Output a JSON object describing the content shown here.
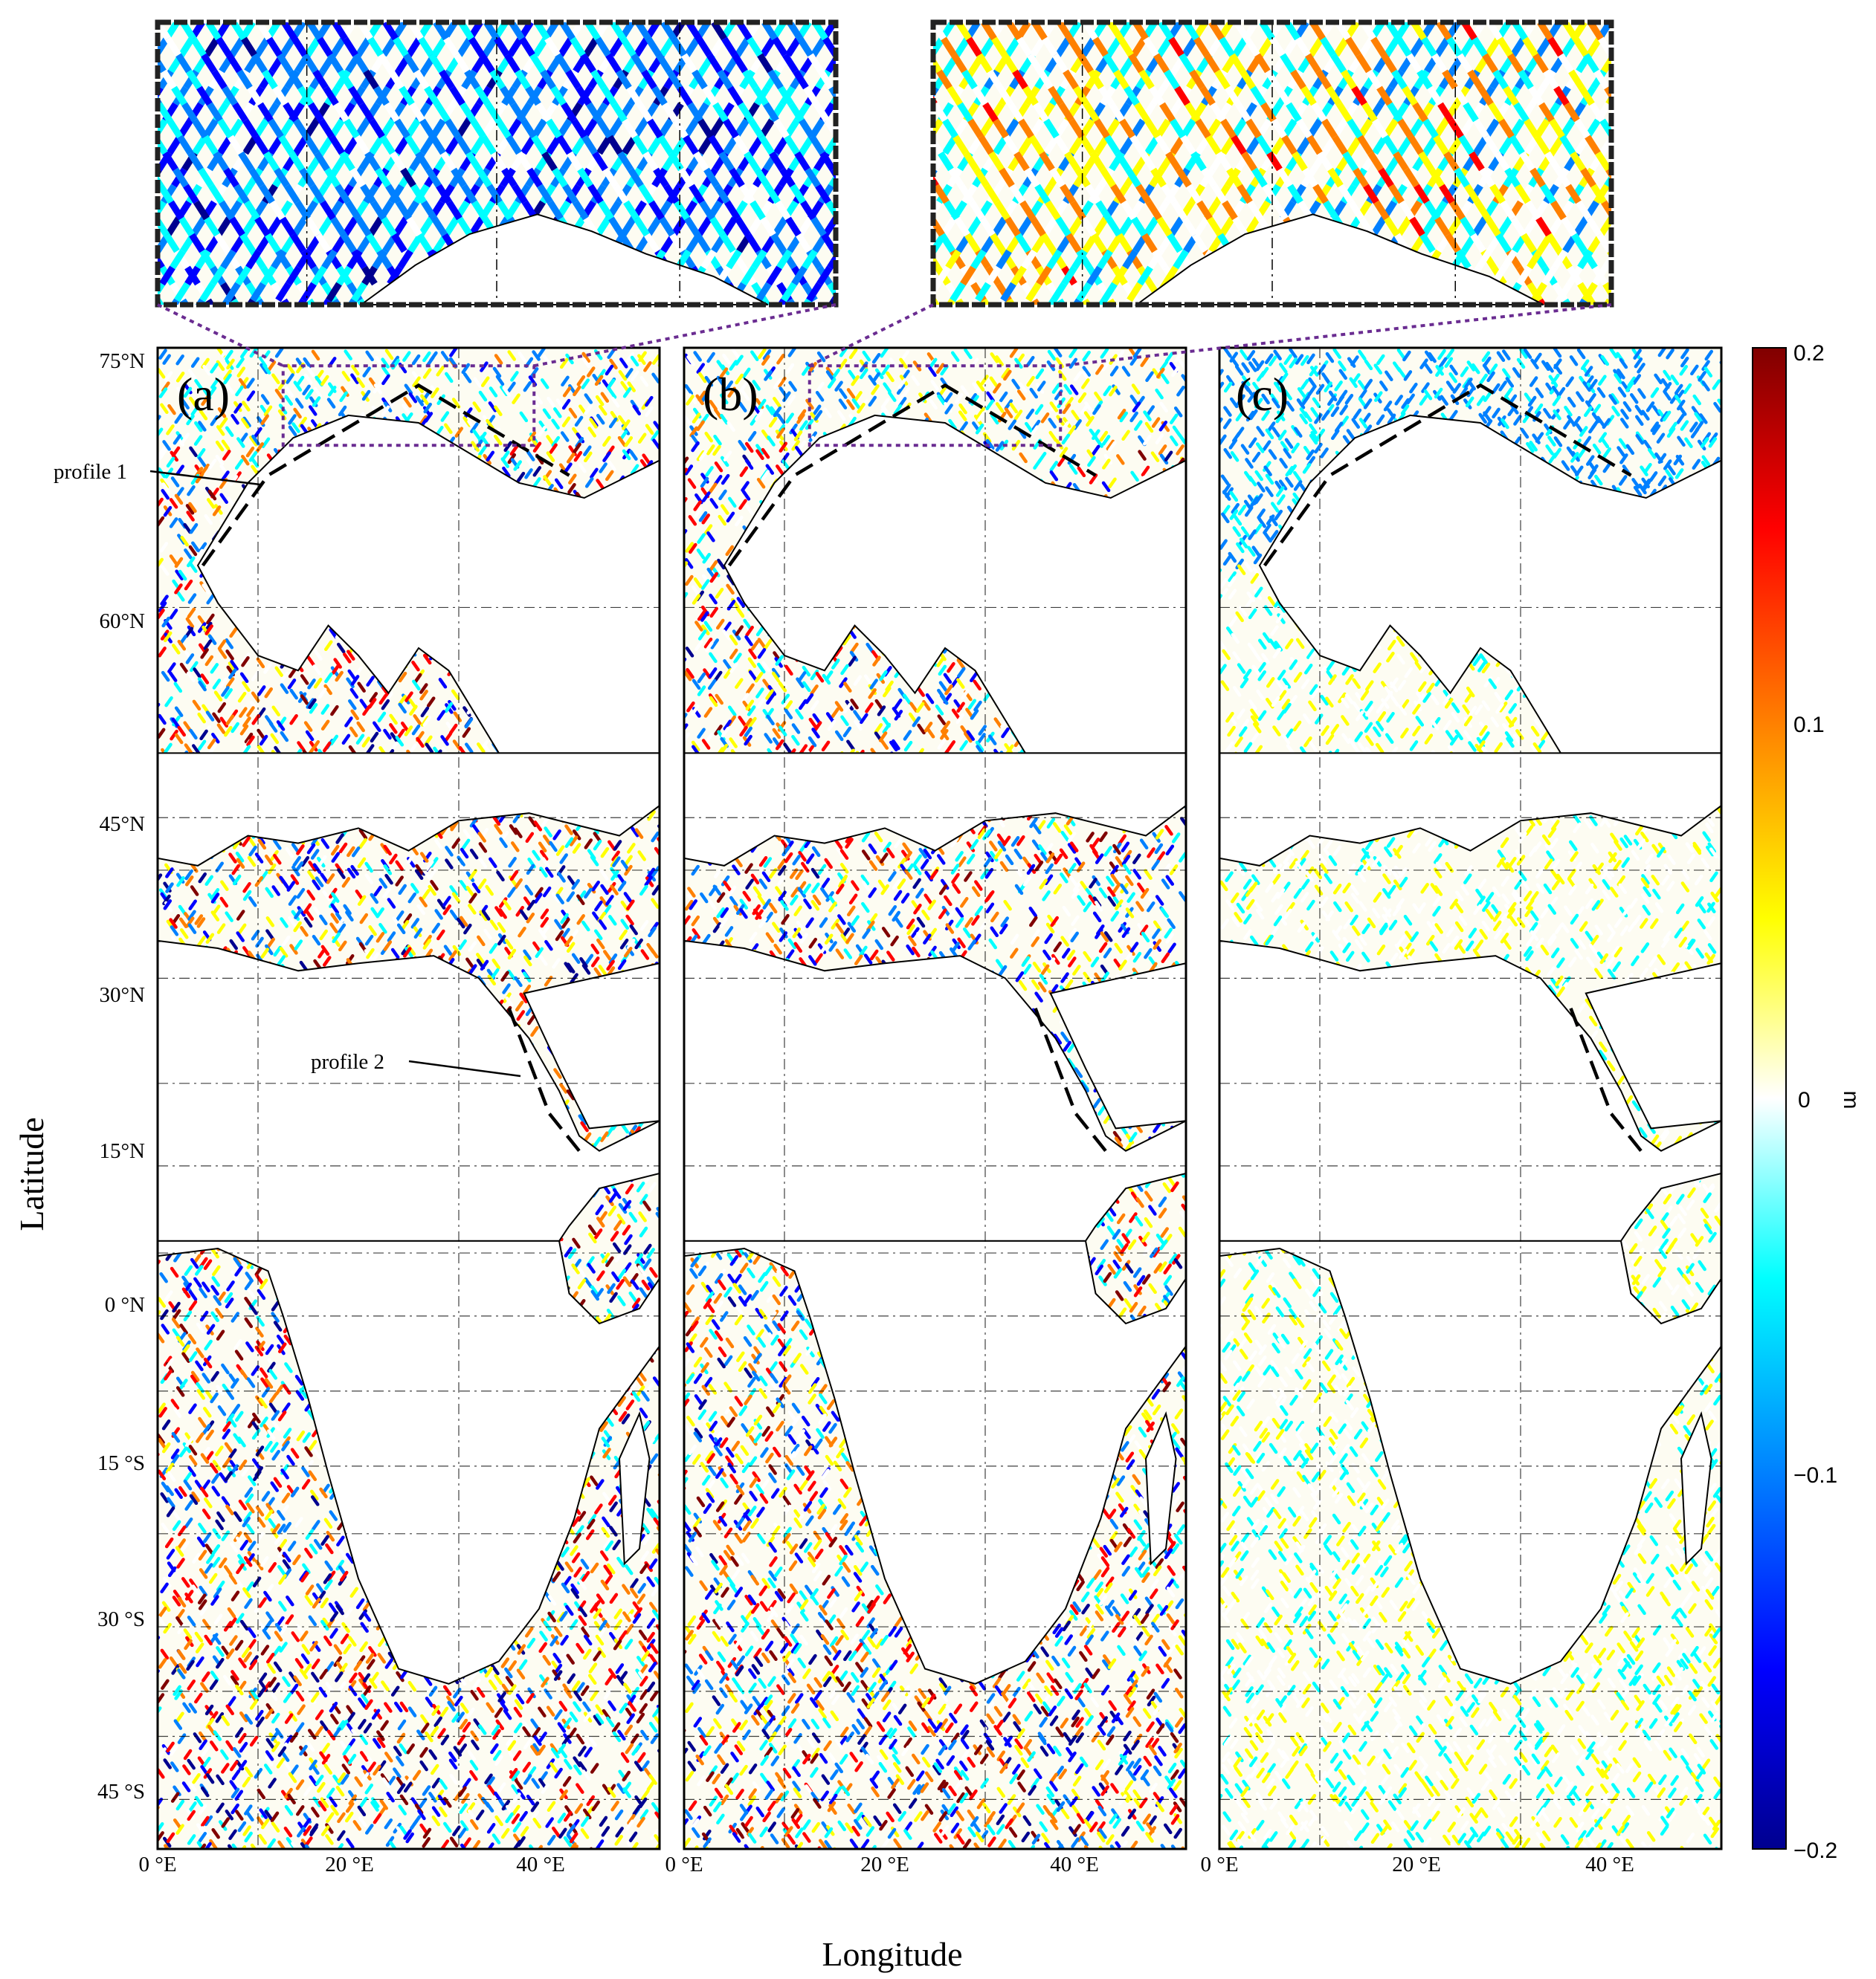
{
  "figure": {
    "x_axis_label": "Longitude",
    "y_axis_label": "Latitude"
  },
  "panels": [
    {
      "label": "(a)",
      "noise_level": 1.0,
      "has_inset": true
    },
    {
      "label": "(b)",
      "noise_level": 0.85,
      "has_inset": true
    },
    {
      "label": "(c)",
      "noise_level": 0.3,
      "has_inset": false
    }
  ],
  "latitude_ticks": [
    "75°N",
    "60°N",
    "45°N",
    "30°N",
    "15°N",
    "0 °N",
    "15 °S",
    "30 °S",
    "45 °S"
  ],
  "longitude_ticks": [
    "0 °E",
    "20 °E",
    "40 °E"
  ],
  "annotations": {
    "profile_1": "profile 1",
    "profile_2": "profile 2"
  },
  "colorbar": {
    "unit": "m",
    "ticks": [
      "0.2",
      "0.1",
      "0",
      "−0.1",
      "−0.2"
    ],
    "range": [
      -0.2,
      0.2
    ],
    "colormap": [
      "#00008f",
      "#0000ff",
      "#0080ff",
      "#00ffff",
      "#ffffff",
      "#ffff00",
      "#ff8000",
      "#ff0000",
      "#800000"
    ]
  },
  "colors": {
    "inset_connector": "#6a2c91",
    "coast": "#000000"
  }
}
